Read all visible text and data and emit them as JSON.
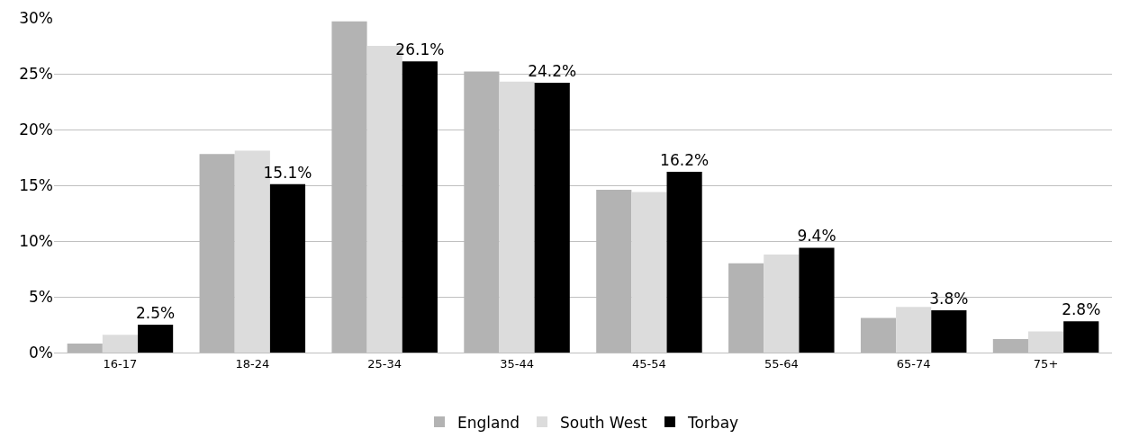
{
  "chart_data": {
    "type": "bar",
    "categories": [
      "16-17",
      "18-24",
      "25-34",
      "35-44",
      "45-54",
      "55-64",
      "65-74",
      "75+"
    ],
    "series": [
      {
        "name": "England",
        "color": "#b3b3b3",
        "values": [
          0.8,
          17.8,
          29.7,
          25.2,
          14.6,
          8.0,
          3.1,
          1.2
        ]
      },
      {
        "name": "South West",
        "color": "#dcdcdc",
        "values": [
          1.6,
          18.1,
          27.5,
          24.3,
          14.4,
          8.8,
          4.1,
          1.9
        ]
      },
      {
        "name": "Torbay",
        "color": "#000000",
        "values": [
          2.5,
          15.1,
          26.1,
          24.2,
          16.2,
          9.4,
          3.8,
          2.8
        ],
        "value_labels": [
          "2.5%",
          "15.1%",
          "26.1%",
          "24.2%",
          "16.2%",
          "9.4%",
          "3.8%",
          "2.8%"
        ]
      }
    ],
    "ylim": [
      0,
      30
    ],
    "yticks": [
      {
        "value": 0,
        "label": "0%"
      },
      {
        "value": 5,
        "label": "5%"
      },
      {
        "value": 10,
        "label": "10%"
      },
      {
        "value": 15,
        "label": "15%"
      },
      {
        "value": 20,
        "label": "20%"
      },
      {
        "value": 25,
        "label": "25%"
      },
      {
        "value": 30,
        "label": "30%"
      }
    ],
    "grid": "y",
    "legend": "bottom"
  }
}
